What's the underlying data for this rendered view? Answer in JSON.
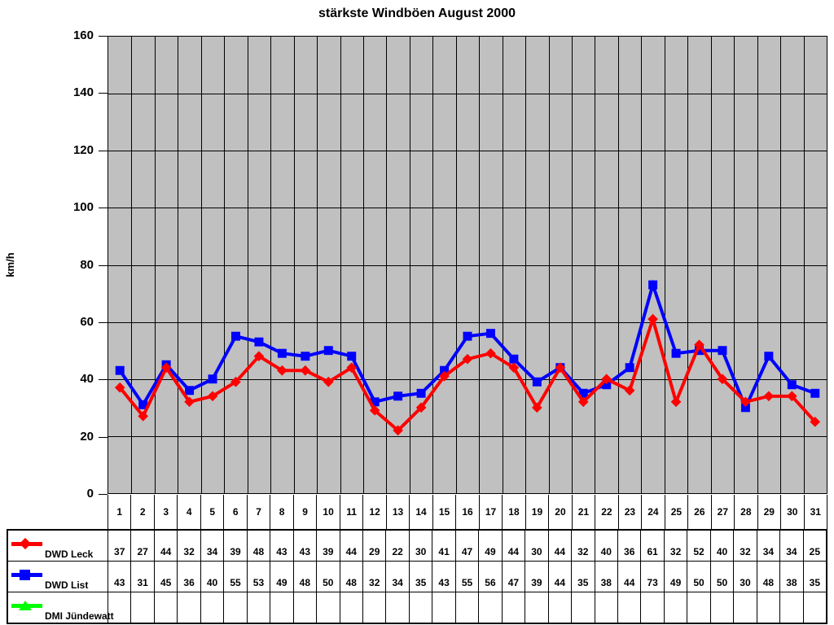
{
  "title": "stärkste Windböen August 2000",
  "y_axis_label": "km/h",
  "colors": {
    "plot_background": "#c0c0c0",
    "gridline": "#000000",
    "dwd_leck": "#ff0000",
    "dwd_list": "#0000ff",
    "dmi_juendewatt": "#00ff00"
  },
  "chart_data": {
    "type": "line",
    "title": "stärkste Windböen August 2000",
    "xlabel": "",
    "ylabel": "km/h",
    "ylim": [
      0,
      160
    ],
    "yticks": [
      0,
      20,
      40,
      60,
      80,
      100,
      120,
      140,
      160
    ],
    "grid": true,
    "plot_background": "#c0c0c0",
    "legend_position": "table-left",
    "categories": [
      "1",
      "2",
      "3",
      "4",
      "5",
      "6",
      "7",
      "8",
      "9",
      "10",
      "11",
      "12",
      "13",
      "14",
      "15",
      "16",
      "17",
      "18",
      "19",
      "20",
      "21",
      "22",
      "23",
      "24",
      "25",
      "26",
      "27",
      "28",
      "29",
      "30",
      "31"
    ],
    "series": [
      {
        "id": "dwd-leck",
        "name": "DWD Leck",
        "color": "#ff0000",
        "marker": "diamond",
        "values": [
          37,
          27,
          44,
          32,
          34,
          39,
          48,
          43,
          43,
          39,
          44,
          29,
          22,
          30,
          41,
          47,
          49,
          44,
          30,
          44,
          32,
          40,
          36,
          61,
          32,
          52,
          40,
          32,
          34,
          34,
          25
        ]
      },
      {
        "id": "dwd-list",
        "name": "DWD List",
        "color": "#0000ff",
        "marker": "square",
        "values": [
          43,
          31,
          45,
          36,
          40,
          55,
          53,
          49,
          48,
          50,
          48,
          32,
          34,
          35,
          43,
          55,
          56,
          47,
          39,
          44,
          35,
          38,
          44,
          73,
          49,
          50,
          50,
          30,
          48,
          38,
          35
        ]
      },
      {
        "id": "dmi-juendewatt",
        "name": "DMI Jündewatt",
        "color": "#00ff00",
        "marker": "triangle",
        "values": []
      }
    ]
  }
}
